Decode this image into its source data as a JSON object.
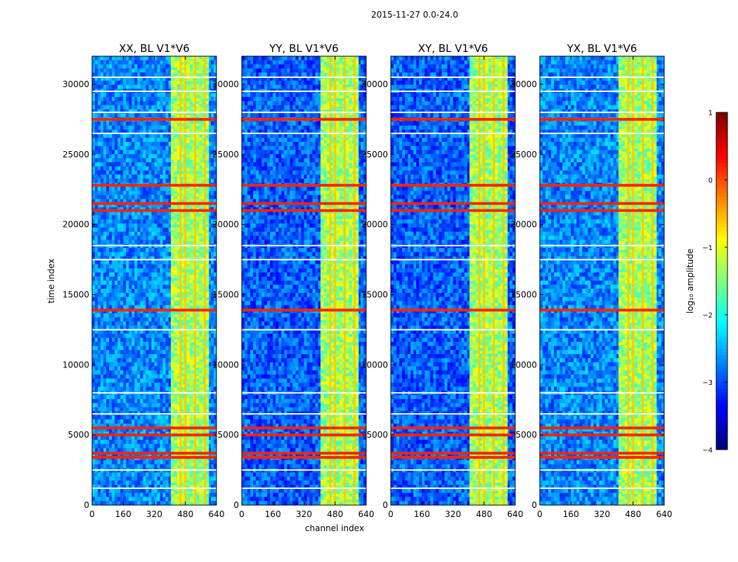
{
  "chart_data": {
    "type": "heatmap",
    "suptitle": "2015-11-27 0.0-24.0",
    "xlabel": "channel index",
    "ylabel": "time index",
    "xlim": [
      0,
      640
    ],
    "ylim": [
      0,
      32000
    ],
    "xticks": [
      0,
      160,
      320,
      480,
      640
    ],
    "yticks": [
      0,
      5000,
      10000,
      15000,
      20000,
      25000,
      30000
    ],
    "panels": [
      {
        "title": "XX, BL V1*V6"
      },
      {
        "title": "YY, BL V1*V6"
      },
      {
        "title": "XY, BL V1*V6"
      },
      {
        "title": "YX, BL V1*V6"
      }
    ],
    "colorbar": {
      "label": "log₁₀ amplitude",
      "range": [
        -4,
        1
      ],
      "ticks": [
        "1",
        "0",
        "−1",
        "−2",
        "−3",
        "−4"
      ],
      "colormap": "jet"
    },
    "features": {
      "bright_channel_band": [
        405,
        600
      ],
      "bright_channel_lines": [
        455,
        480,
        530,
        580
      ],
      "high_time_rows": [
        21000,
        21500,
        22800,
        5500,
        5000,
        3700,
        3400,
        13900,
        27500
      ],
      "flagged_time_rows": [
        30500,
        29500,
        28000,
        26500,
        18500,
        17500,
        12500,
        8000,
        6500,
        2500,
        1200
      ]
    }
  }
}
